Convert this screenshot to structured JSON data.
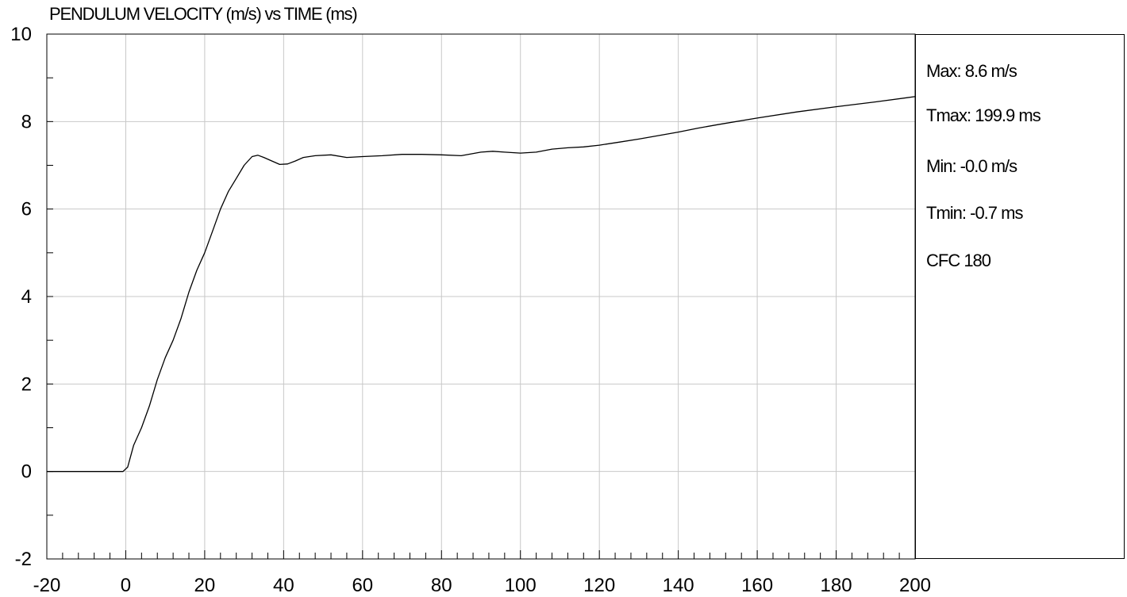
{
  "chart_data": {
    "type": "line",
    "title": "PENDULUM VELOCITY (m/s) vs TIME (ms)",
    "xlabel": "",
    "ylabel": "",
    "xlim": [
      -20,
      200
    ],
    "ylim": [
      -2,
      10
    ],
    "x_ticks": [
      -20,
      0,
      20,
      40,
      60,
      80,
      100,
      120,
      140,
      160,
      180,
      200
    ],
    "y_ticks": [
      -2,
      0,
      2,
      4,
      6,
      8,
      10
    ],
    "grid": true,
    "line_color": "#000000",
    "grid_color": "#c8c8c8",
    "series": [
      {
        "x": [
          -20,
          -10,
          -1,
          -0.7,
          0.5,
          2,
          4,
          6,
          8,
          10,
          12,
          14,
          16,
          18,
          20,
          22,
          24,
          26,
          28,
          30,
          32,
          33.5,
          35,
          37,
          39,
          41,
          43,
          45,
          48,
          52,
          56,
          60,
          65,
          70,
          75,
          80,
          85,
          90,
          93,
          96,
          100,
          104,
          108,
          112,
          116,
          120,
          125,
          130,
          135,
          140,
          145,
          150,
          160,
          170,
          180,
          190,
          199.9
        ],
        "y": [
          0,
          0,
          0,
          0,
          0.1,
          0.6,
          1.0,
          1.5,
          2.1,
          2.6,
          3.0,
          3.5,
          4.1,
          4.6,
          5.0,
          5.5,
          6.0,
          6.4,
          6.7,
          7.0,
          7.2,
          7.23,
          7.18,
          7.1,
          7.02,
          7.03,
          7.1,
          7.18,
          7.22,
          7.24,
          7.18,
          7.2,
          7.22,
          7.25,
          7.25,
          7.24,
          7.22,
          7.3,
          7.32,
          7.3,
          7.28,
          7.3,
          7.37,
          7.4,
          7.42,
          7.46,
          7.53,
          7.6,
          7.68,
          7.76,
          7.85,
          7.93,
          8.08,
          8.22,
          8.34,
          8.45,
          8.57
        ]
      }
    ]
  },
  "stats": {
    "max": "Max: 8.6 m/s",
    "tmax": "Tmax: 199.9 ms",
    "min": "Min: -0.0 m/s",
    "tmin": "Tmin: -0.7 ms",
    "filter": "CFC 180"
  }
}
